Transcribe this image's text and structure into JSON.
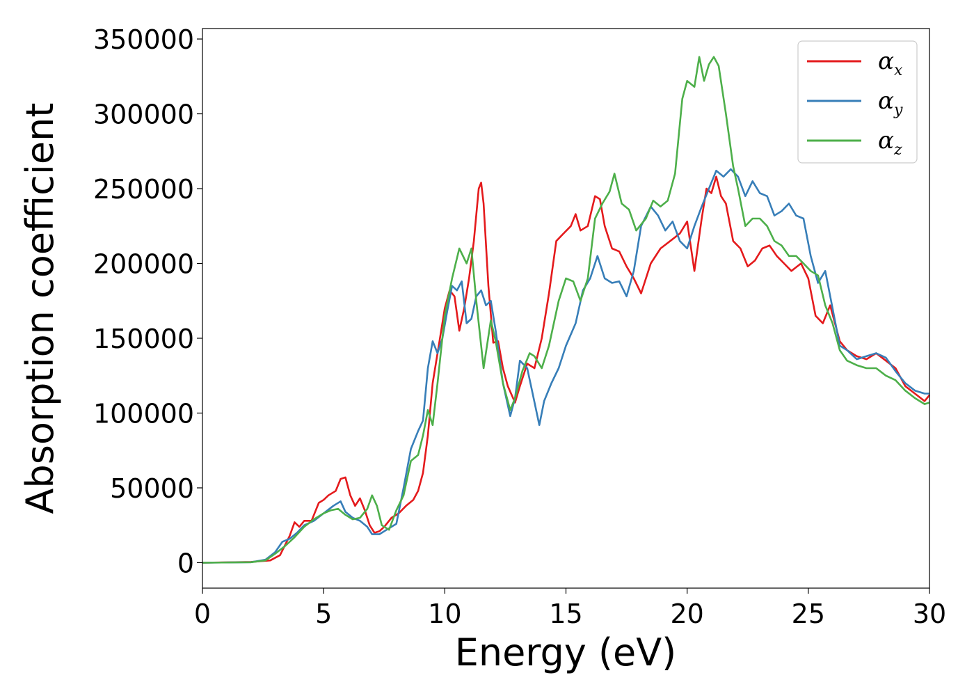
{
  "chart_data": {
    "type": "line",
    "title": "",
    "xlabel": "Energy (eV)",
    "ylabel": "Absorption coefficient",
    "xlim": [
      0,
      30
    ],
    "ylim": [
      -17000,
      357000
    ],
    "xticks": [
      "0",
      "5",
      "10",
      "15",
      "20",
      "25",
      "30"
    ],
    "yticks": [
      "0",
      "50000",
      "100000",
      "150000",
      "200000",
      "250000",
      "300000",
      "350000"
    ],
    "grid": false,
    "legend_position": "top-right",
    "series": [
      {
        "name": "α",
        "subscript": "x",
        "color": "#e41a1c",
        "points": [
          [
            0,
            0
          ],
          [
            2.0,
            500
          ],
          [
            2.8,
            1500
          ],
          [
            3.2,
            5000
          ],
          [
            3.6,
            18000
          ],
          [
            3.8,
            27000
          ],
          [
            4.0,
            24000
          ],
          [
            4.2,
            28000
          ],
          [
            4.5,
            28000
          ],
          [
            4.8,
            40000
          ],
          [
            5.0,
            42000
          ],
          [
            5.2,
            45000
          ],
          [
            5.5,
            48000
          ],
          [
            5.7,
            56000
          ],
          [
            5.9,
            57000
          ],
          [
            6.1,
            45000
          ],
          [
            6.3,
            38000
          ],
          [
            6.5,
            43000
          ],
          [
            6.7,
            35000
          ],
          [
            6.9,
            25000
          ],
          [
            7.1,
            20000
          ],
          [
            7.3,
            21000
          ],
          [
            7.5,
            24000
          ],
          [
            7.8,
            30000
          ],
          [
            8.1,
            33000
          ],
          [
            8.4,
            38000
          ],
          [
            8.7,
            42000
          ],
          [
            8.9,
            48000
          ],
          [
            9.1,
            60000
          ],
          [
            9.3,
            85000
          ],
          [
            9.5,
            120000
          ],
          [
            9.8,
            150000
          ],
          [
            10.0,
            170000
          ],
          [
            10.2,
            182000
          ],
          [
            10.4,
            178000
          ],
          [
            10.6,
            155000
          ],
          [
            10.8,
            170000
          ],
          [
            11.0,
            190000
          ],
          [
            11.2,
            215000
          ],
          [
            11.4,
            250000
          ],
          [
            11.5,
            254000
          ],
          [
            11.6,
            240000
          ],
          [
            11.8,
            185000
          ],
          [
            12.0,
            147000
          ],
          [
            12.2,
            148000
          ],
          [
            12.4,
            130000
          ],
          [
            12.6,
            118000
          ],
          [
            12.9,
            107000
          ],
          [
            13.1,
            118000
          ],
          [
            13.4,
            133000
          ],
          [
            13.7,
            130000
          ],
          [
            14.0,
            150000
          ],
          [
            14.3,
            180000
          ],
          [
            14.6,
            215000
          ],
          [
            14.9,
            220000
          ],
          [
            15.2,
            225000
          ],
          [
            15.4,
            233000
          ],
          [
            15.6,
            222000
          ],
          [
            15.9,
            225000
          ],
          [
            16.2,
            245000
          ],
          [
            16.4,
            243000
          ],
          [
            16.6,
            225000
          ],
          [
            16.9,
            210000
          ],
          [
            17.2,
            208000
          ],
          [
            17.5,
            198000
          ],
          [
            17.8,
            190000
          ],
          [
            18.1,
            180000
          ],
          [
            18.5,
            200000
          ],
          [
            18.9,
            210000
          ],
          [
            19.3,
            215000
          ],
          [
            19.7,
            220000
          ],
          [
            20.0,
            228000
          ],
          [
            20.3,
            195000
          ],
          [
            20.6,
            230000
          ],
          [
            20.8,
            250000
          ],
          [
            21.0,
            247000
          ],
          [
            21.2,
            258000
          ],
          [
            21.4,
            245000
          ],
          [
            21.6,
            240000
          ],
          [
            21.9,
            215000
          ],
          [
            22.2,
            210000
          ],
          [
            22.5,
            198000
          ],
          [
            22.8,
            202000
          ],
          [
            23.1,
            210000
          ],
          [
            23.4,
            212000
          ],
          [
            23.7,
            205000
          ],
          [
            24.0,
            200000
          ],
          [
            24.3,
            195000
          ],
          [
            24.7,
            200000
          ],
          [
            25.0,
            190000
          ],
          [
            25.3,
            165000
          ],
          [
            25.6,
            160000
          ],
          [
            25.9,
            172000
          ],
          [
            26.3,
            148000
          ],
          [
            26.6,
            142000
          ],
          [
            27.0,
            138000
          ],
          [
            27.4,
            136000
          ],
          [
            27.8,
            140000
          ],
          [
            28.2,
            135000
          ],
          [
            28.6,
            130000
          ],
          [
            29.0,
            118000
          ],
          [
            29.4,
            113000
          ],
          [
            29.8,
            108000
          ],
          [
            30,
            112000
          ]
        ]
      },
      {
        "name": "α",
        "subscript": "y",
        "color": "#377eb8",
        "points": [
          [
            0,
            0
          ],
          [
            2.0,
            300
          ],
          [
            2.6,
            2000
          ],
          [
            3.0,
            7000
          ],
          [
            3.3,
            14000
          ],
          [
            3.6,
            16000
          ],
          [
            3.9,
            20000
          ],
          [
            4.2,
            25000
          ],
          [
            4.6,
            28000
          ],
          [
            5.0,
            33000
          ],
          [
            5.4,
            38000
          ],
          [
            5.7,
            41000
          ],
          [
            5.9,
            34000
          ],
          [
            6.2,
            30000
          ],
          [
            6.5,
            28000
          ],
          [
            6.8,
            24000
          ],
          [
            7.0,
            19000
          ],
          [
            7.3,
            19000
          ],
          [
            7.6,
            22000
          ],
          [
            8.0,
            26000
          ],
          [
            8.3,
            50000
          ],
          [
            8.6,
            76000
          ],
          [
            8.9,
            88000
          ],
          [
            9.1,
            95000
          ],
          [
            9.3,
            130000
          ],
          [
            9.5,
            148000
          ],
          [
            9.7,
            140000
          ],
          [
            9.9,
            150000
          ],
          [
            10.1,
            168000
          ],
          [
            10.3,
            185000
          ],
          [
            10.5,
            182000
          ],
          [
            10.7,
            188000
          ],
          [
            10.9,
            160000
          ],
          [
            11.1,
            163000
          ],
          [
            11.3,
            178000
          ],
          [
            11.5,
            182000
          ],
          [
            11.7,
            172000
          ],
          [
            11.9,
            175000
          ],
          [
            12.1,
            155000
          ],
          [
            12.4,
            120000
          ],
          [
            12.7,
            98000
          ],
          [
            12.9,
            110000
          ],
          [
            13.1,
            135000
          ],
          [
            13.4,
            130000
          ],
          [
            13.6,
            115000
          ],
          [
            13.9,
            92000
          ],
          [
            14.1,
            108000
          ],
          [
            14.4,
            120000
          ],
          [
            14.7,
            130000
          ],
          [
            15.0,
            145000
          ],
          [
            15.4,
            160000
          ],
          [
            15.7,
            182000
          ],
          [
            16.0,
            190000
          ],
          [
            16.3,
            205000
          ],
          [
            16.6,
            190000
          ],
          [
            16.9,
            187000
          ],
          [
            17.2,
            188000
          ],
          [
            17.5,
            178000
          ],
          [
            17.8,
            195000
          ],
          [
            18.1,
            225000
          ],
          [
            18.5,
            238000
          ],
          [
            18.8,
            232000
          ],
          [
            19.1,
            222000
          ],
          [
            19.4,
            228000
          ],
          [
            19.7,
            215000
          ],
          [
            20.0,
            210000
          ],
          [
            20.3,
            225000
          ],
          [
            20.6,
            238000
          ],
          [
            20.9,
            250000
          ],
          [
            21.2,
            262000
          ],
          [
            21.5,
            258000
          ],
          [
            21.8,
            263000
          ],
          [
            22.1,
            258000
          ],
          [
            22.4,
            245000
          ],
          [
            22.7,
            255000
          ],
          [
            23.0,
            247000
          ],
          [
            23.3,
            245000
          ],
          [
            23.6,
            232000
          ],
          [
            23.9,
            235000
          ],
          [
            24.2,
            240000
          ],
          [
            24.5,
            232000
          ],
          [
            24.8,
            230000
          ],
          [
            25.1,
            205000
          ],
          [
            25.4,
            187000
          ],
          [
            25.7,
            195000
          ],
          [
            26.0,
            170000
          ],
          [
            26.3,
            145000
          ],
          [
            26.6,
            142000
          ],
          [
            27.0,
            136000
          ],
          [
            27.4,
            138000
          ],
          [
            27.8,
            140000
          ],
          [
            28.2,
            137000
          ],
          [
            28.6,
            128000
          ],
          [
            29.0,
            120000
          ],
          [
            29.4,
            115000
          ],
          [
            29.8,
            113000
          ],
          [
            30,
            113000
          ]
        ]
      },
      {
        "name": "α",
        "subscript": "z",
        "color": "#4daf4a",
        "points": [
          [
            0,
            0
          ],
          [
            2.0,
            300
          ],
          [
            2.6,
            1500
          ],
          [
            3.0,
            6000
          ],
          [
            3.4,
            11000
          ],
          [
            3.8,
            17000
          ],
          [
            4.2,
            24000
          ],
          [
            4.6,
            29000
          ],
          [
            5.0,
            33000
          ],
          [
            5.3,
            35000
          ],
          [
            5.6,
            36000
          ],
          [
            5.9,
            32000
          ],
          [
            6.2,
            29000
          ],
          [
            6.5,
            30000
          ],
          [
            6.8,
            36000
          ],
          [
            7.0,
            45000
          ],
          [
            7.2,
            38000
          ],
          [
            7.4,
            25000
          ],
          [
            7.7,
            22000
          ],
          [
            8.0,
            35000
          ],
          [
            8.3,
            45000
          ],
          [
            8.6,
            68000
          ],
          [
            8.9,
            72000
          ],
          [
            9.1,
            85000
          ],
          [
            9.3,
            102000
          ],
          [
            9.5,
            92000
          ],
          [
            9.7,
            120000
          ],
          [
            10.0,
            165000
          ],
          [
            10.3,
            190000
          ],
          [
            10.6,
            210000
          ],
          [
            10.9,
            200000
          ],
          [
            11.1,
            210000
          ],
          [
            11.3,
            175000
          ],
          [
            11.6,
            130000
          ],
          [
            11.9,
            162000
          ],
          [
            12.1,
            148000
          ],
          [
            12.4,
            120000
          ],
          [
            12.7,
            102000
          ],
          [
            12.9,
            110000
          ],
          [
            13.2,
            128000
          ],
          [
            13.5,
            140000
          ],
          [
            13.7,
            138000
          ],
          [
            14.0,
            130000
          ],
          [
            14.3,
            145000
          ],
          [
            14.7,
            175000
          ],
          [
            15.0,
            190000
          ],
          [
            15.3,
            188000
          ],
          [
            15.6,
            175000
          ],
          [
            15.9,
            190000
          ],
          [
            16.2,
            230000
          ],
          [
            16.5,
            240000
          ],
          [
            16.8,
            248000
          ],
          [
            17.0,
            260000
          ],
          [
            17.3,
            240000
          ],
          [
            17.6,
            236000
          ],
          [
            17.9,
            222000
          ],
          [
            18.3,
            230000
          ],
          [
            18.6,
            242000
          ],
          [
            18.9,
            238000
          ],
          [
            19.2,
            242000
          ],
          [
            19.5,
            260000
          ],
          [
            19.8,
            310000
          ],
          [
            20.0,
            322000
          ],
          [
            20.3,
            318000
          ],
          [
            20.5,
            338000
          ],
          [
            20.7,
            322000
          ],
          [
            20.9,
            333000
          ],
          [
            21.1,
            338000
          ],
          [
            21.3,
            332000
          ],
          [
            21.6,
            300000
          ],
          [
            21.9,
            265000
          ],
          [
            22.1,
            250000
          ],
          [
            22.4,
            225000
          ],
          [
            22.7,
            230000
          ],
          [
            23.0,
            230000
          ],
          [
            23.3,
            225000
          ],
          [
            23.6,
            215000
          ],
          [
            23.9,
            212000
          ],
          [
            24.2,
            205000
          ],
          [
            24.5,
            205000
          ],
          [
            24.8,
            200000
          ],
          [
            25.1,
            195000
          ],
          [
            25.4,
            192000
          ],
          [
            25.7,
            172000
          ],
          [
            26.0,
            160000
          ],
          [
            26.3,
            142000
          ],
          [
            26.6,
            135000
          ],
          [
            27.0,
            132000
          ],
          [
            27.4,
            130000
          ],
          [
            27.8,
            130000
          ],
          [
            28.2,
            125000
          ],
          [
            28.6,
            122000
          ],
          [
            29.0,
            115000
          ],
          [
            29.4,
            110000
          ],
          [
            29.8,
            106000
          ],
          [
            30,
            107000
          ]
        ]
      }
    ]
  }
}
